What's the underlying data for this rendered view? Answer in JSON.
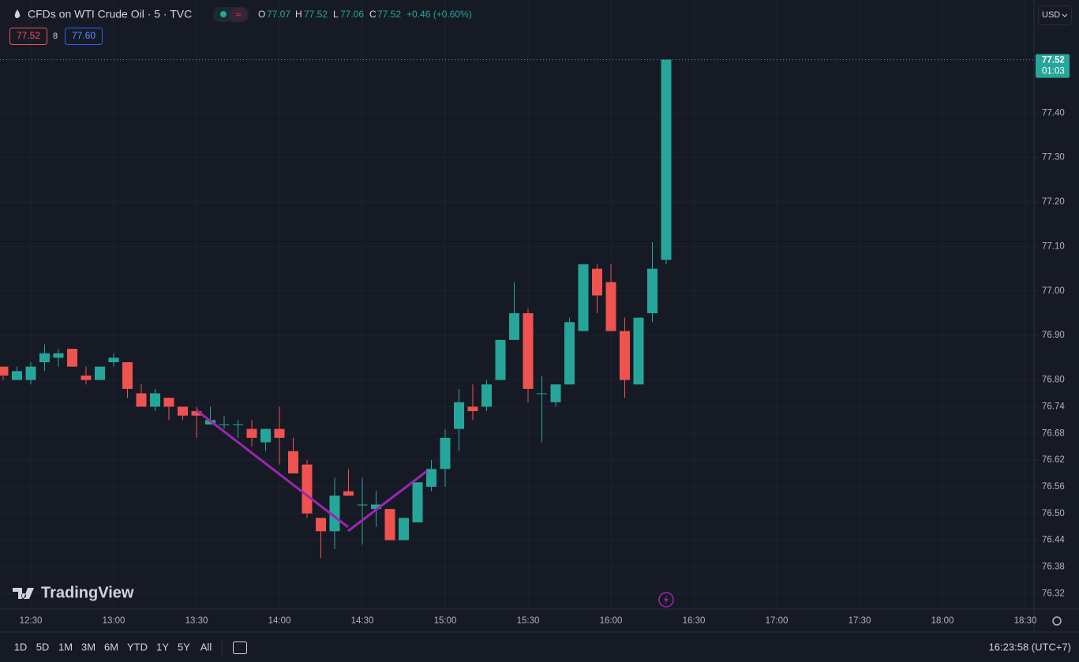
{
  "header": {
    "symbol": "CFDs on WTI Crude Oil · 5 · TVC",
    "ohlc": [
      {
        "label": "O",
        "value": "77.07"
      },
      {
        "label": "H",
        "value": "77.52"
      },
      {
        "label": "L",
        "value": "77.06"
      },
      {
        "label": "C",
        "value": "77.52"
      }
    ],
    "change": "+0.46 (+0.60%)",
    "bid": "77.52",
    "spread": "8",
    "ask": "77.60"
  },
  "currency": "USD",
  "chart_data": {
    "type": "candlestick",
    "categories": [
      "12:20",
      "12:25",
      "12:30",
      "12:35",
      "12:40",
      "12:45",
      "12:50",
      "12:55",
      "13:00",
      "13:05",
      "13:10",
      "13:15",
      "13:20",
      "13:25",
      "13:30",
      "13:35",
      "13:40",
      "13:45",
      "13:50",
      "13:55",
      "14:00",
      "14:05",
      "14:10",
      "14:15",
      "14:20",
      "14:25",
      "14:30",
      "14:35",
      "14:40",
      "14:45",
      "14:50",
      "14:55",
      "15:00",
      "15:05",
      "15:10",
      "15:15",
      "15:20",
      "15:25",
      "15:30",
      "15:35",
      "15:40",
      "15:45",
      "15:50",
      "15:55",
      "16:00",
      "16:05",
      "16:10",
      "16:15",
      "16:20"
    ],
    "open": [
      76.83,
      76.8,
      76.8,
      76.84,
      76.85,
      76.87,
      76.81,
      76.8,
      76.84,
      76.84,
      76.77,
      76.74,
      76.76,
      76.74,
      76.73,
      76.7,
      76.7,
      76.7,
      76.69,
      76.66,
      76.69,
      76.64,
      76.61,
      76.49,
      76.46,
      76.55,
      76.52,
      76.51,
      76.51,
      76.44,
      76.48,
      76.56,
      76.6,
      76.69,
      76.74,
      76.74,
      76.8,
      76.89,
      76.95,
      76.77,
      76.75,
      76.79,
      76.91,
      77.05,
      77.02,
      76.91,
      76.79,
      76.95,
      77.07
    ],
    "high": [
      76.83,
      76.83,
      76.84,
      76.88,
      76.87,
      76.87,
      76.83,
      76.83,
      76.86,
      76.84,
      76.79,
      76.78,
      76.76,
      76.74,
      76.74,
      76.74,
      76.72,
      76.71,
      76.71,
      76.69,
      76.74,
      76.67,
      76.62,
      76.49,
      76.58,
      76.6,
      76.58,
      76.55,
      76.51,
      76.49,
      76.57,
      76.62,
      76.69,
      76.78,
      76.79,
      76.8,
      76.89,
      77.02,
      76.96,
      76.81,
      76.79,
      76.94,
      77.06,
      77.06,
      77.06,
      76.94,
      76.94,
      77.11,
      77.52
    ],
    "low": [
      76.8,
      76.8,
      76.79,
      76.82,
      76.83,
      76.83,
      76.79,
      76.8,
      76.83,
      76.76,
      76.74,
      76.73,
      76.71,
      76.71,
      76.67,
      76.7,
      76.69,
      76.67,
      76.65,
      76.64,
      76.61,
      76.59,
      76.49,
      76.4,
      76.42,
      76.54,
      76.43,
      76.47,
      76.44,
      76.44,
      76.48,
      76.55,
      76.56,
      76.64,
      76.71,
      76.73,
      76.8,
      76.89,
      76.75,
      76.66,
      76.74,
      76.79,
      76.91,
      76.95,
      76.91,
      76.76,
      76.79,
      76.93,
      77.06
    ],
    "close": [
      76.81,
      76.82,
      76.83,
      76.86,
      76.86,
      76.83,
      76.8,
      76.83,
      76.85,
      76.78,
      76.74,
      76.77,
      76.74,
      76.72,
      76.72,
      76.71,
      76.7,
      76.7,
      76.67,
      76.69,
      76.67,
      76.59,
      76.5,
      76.46,
      76.54,
      76.54,
      76.52,
      76.52,
      76.44,
      76.49,
      76.57,
      76.6,
      76.67,
      76.75,
      76.73,
      76.79,
      76.89,
      76.95,
      76.78,
      76.77,
      76.79,
      76.93,
      77.06,
      76.99,
      76.91,
      76.8,
      76.94,
      77.05,
      77.52
    ],
    "up_color": "#26a69a",
    "down_color": "#ef5350",
    "ylim": [
      76.285,
      77.654
    ],
    "yticks": [
      {
        "value": 77.4,
        "label": "77.40"
      },
      {
        "value": 77.3,
        "label": "77.30"
      },
      {
        "value": 77.2,
        "label": "77.20"
      },
      {
        "value": 77.1,
        "label": "77.10"
      },
      {
        "value": 77,
        "label": "77.00"
      },
      {
        "value": 76.9,
        "label": "76.90"
      },
      {
        "value": 76.8,
        "label": "76.80"
      },
      76.74,
      76.68,
      76.62,
      76.56,
      {
        "value": 76.5,
        "label": "76.50"
      },
      76.44,
      76.38,
      76.32
    ],
    "xticks": [
      "12:30",
      "13:00",
      "13:30",
      "14:00",
      "14:30",
      "15:00",
      "15:30",
      "16:00",
      "16:30",
      "17:00",
      "17:30",
      "18:00",
      "18:30"
    ],
    "last_price": 77.52,
    "countdown": "01:03",
    "grid": true
  },
  "brand": "TradingView",
  "ranges": [
    "1D",
    "5D",
    "1M",
    "3M",
    "6M",
    "YTD",
    "1Y",
    "5Y",
    "All"
  ],
  "clock": "16:23:58 (UTC+7)"
}
